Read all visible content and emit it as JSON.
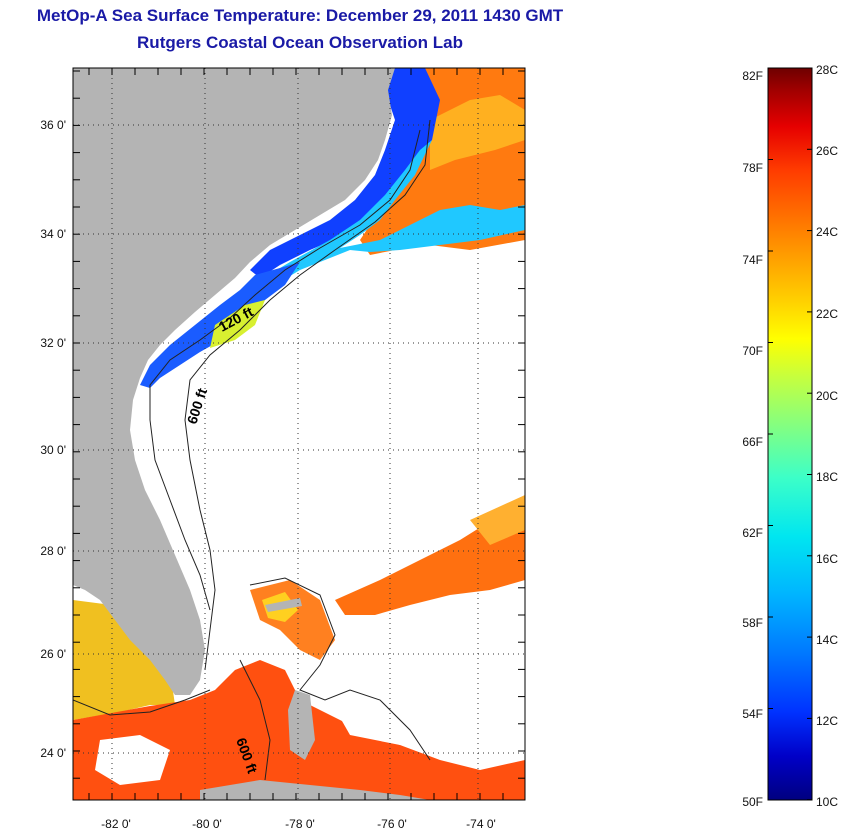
{
  "title": "MetOp-A Sea Surface Temperature:  December 29, 2011 1430 GMT",
  "subtitle": "Rutgers Coastal Ocean Observation Lab",
  "lat_ticks": [
    "36 0'",
    "34 0'",
    "32 0'",
    "30 0'",
    "28 0'",
    "26 0'",
    "24 0'"
  ],
  "lon_ticks": [
    "-82 0'",
    "-80 0'",
    "-78 0'",
    "-76 0'",
    "-74 0'"
  ],
  "contour_labels": {
    "c120_north": "120 ft",
    "c600_north": "600 ft",
    "c600_south": "600 ft"
  },
  "colorbar": {
    "f_labels": [
      "82F",
      "78F",
      "74F",
      "70F",
      "66F",
      "62F",
      "58F",
      "54F",
      "50F"
    ],
    "c_labels": [
      "28C",
      "26C",
      "24C",
      "22C",
      "20C",
      "18C",
      "16C",
      "14C",
      "12C",
      "10C"
    ],
    "colors": [
      "#000080",
      "#0000c8",
      "#0032ff",
      "#0078ff",
      "#00b4ff",
      "#00e6f0",
      "#3cffc8",
      "#8cff78",
      "#c8ff3c",
      "#ffff00",
      "#ffd200",
      "#ffa000",
      "#ff6e00",
      "#ff3c00",
      "#e60000",
      "#a00000",
      "#6e0000"
    ]
  },
  "colors": {
    "land": "#b4b4b4",
    "title": "#1a1aa6"
  }
}
